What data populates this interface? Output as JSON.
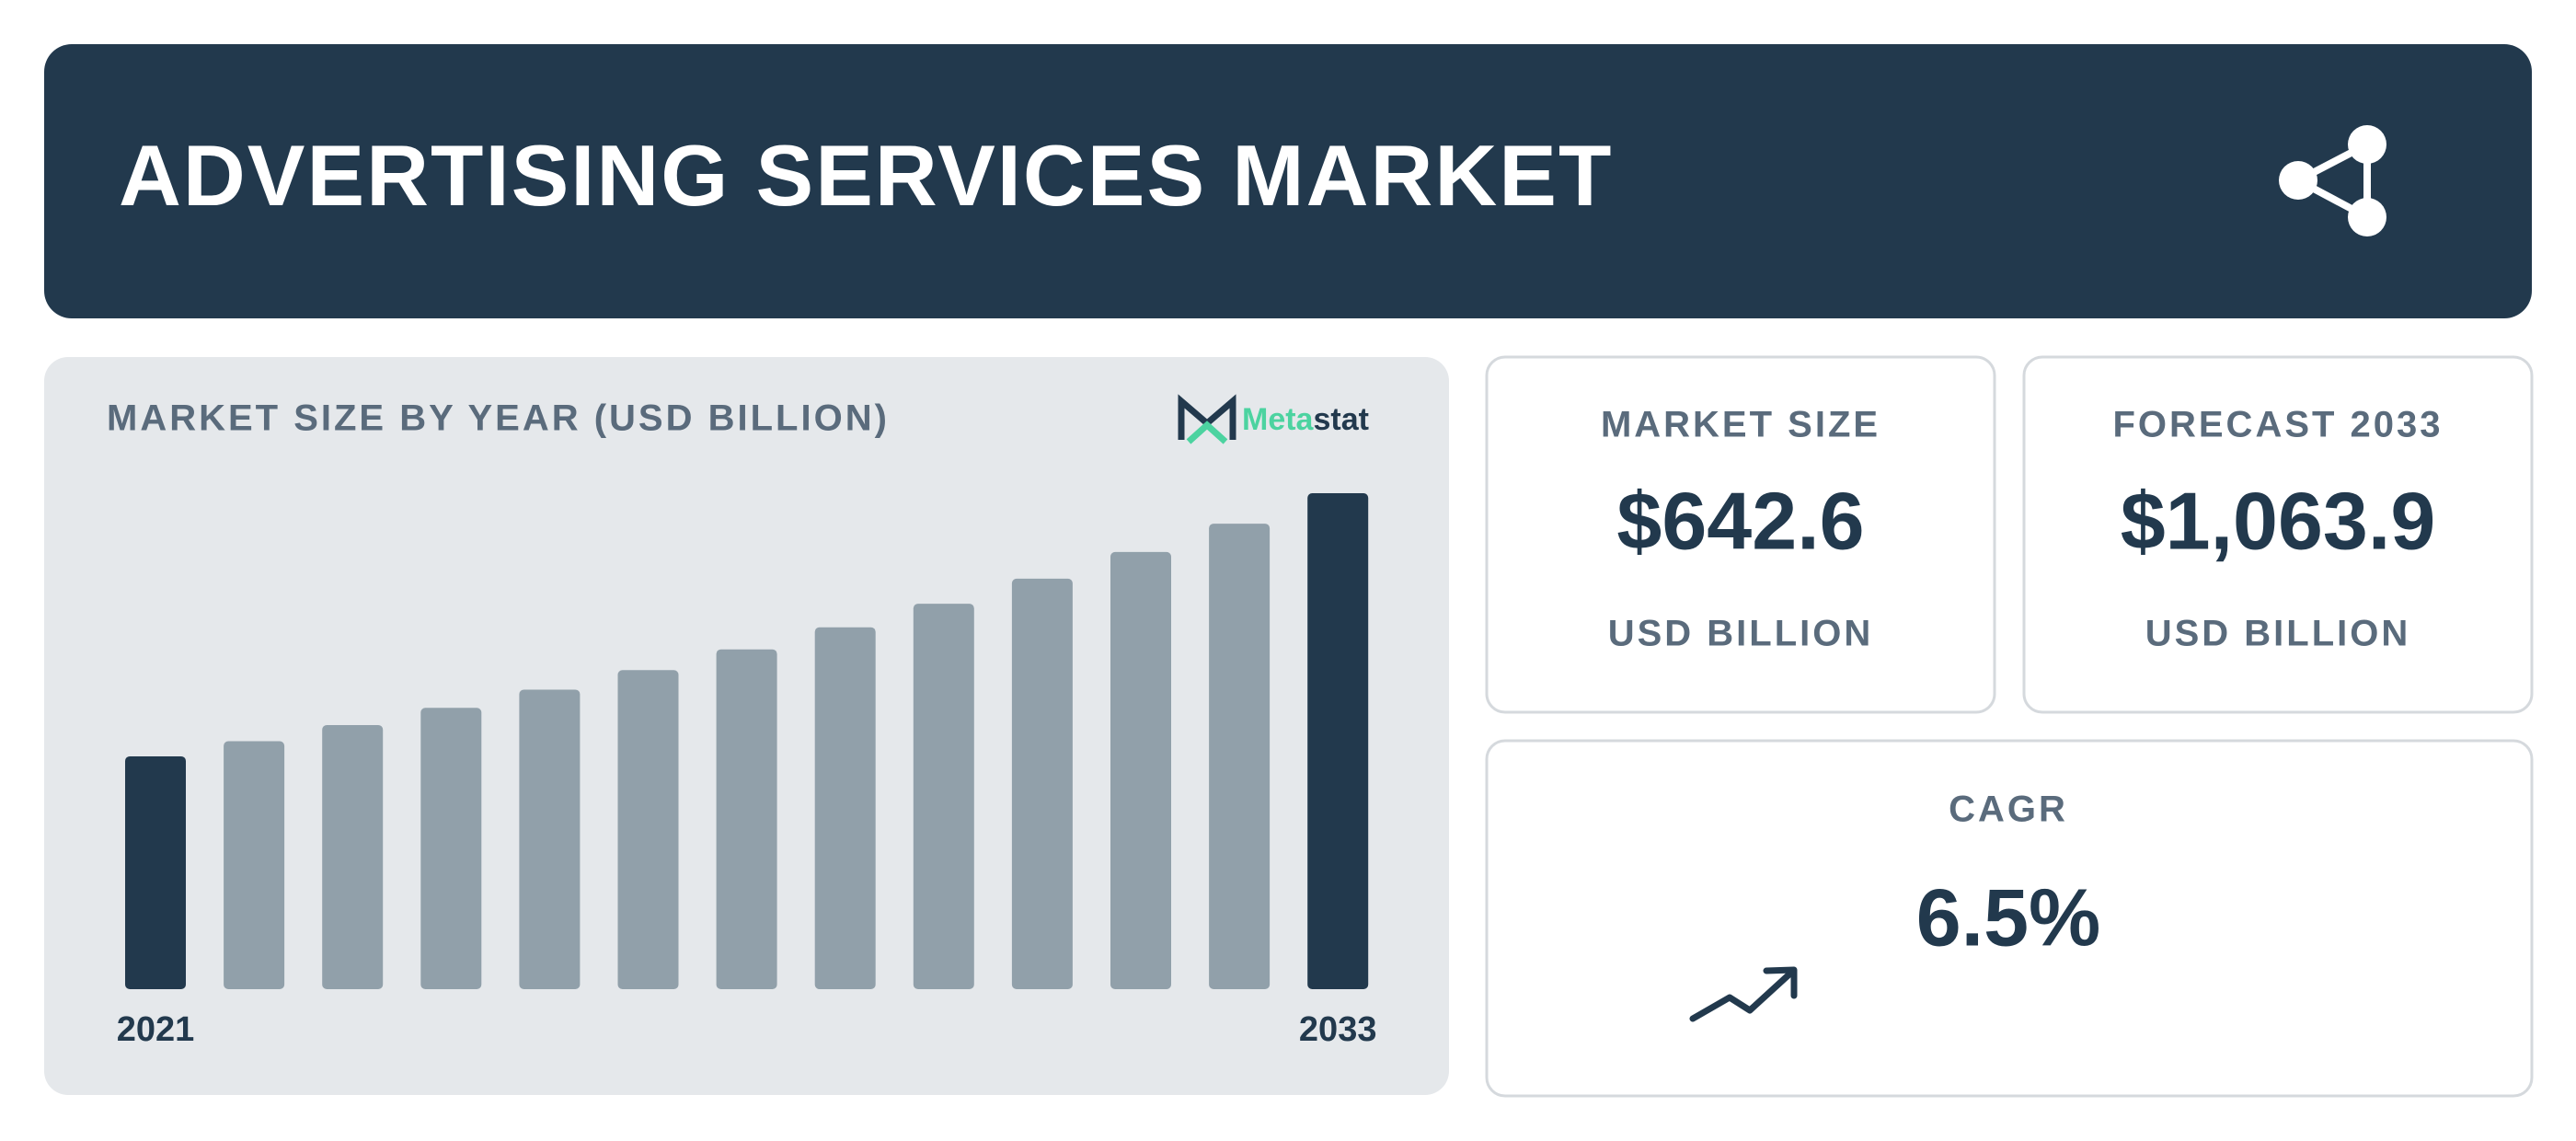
{
  "header": {
    "title": "ADVERTISING SERVICES MARKET"
  },
  "chart_data": {
    "type": "bar",
    "title": "MARKET SIZE BY YEAR (USD BILLION)",
    "categories": [
      "2021",
      null,
      null,
      null,
      null,
      null,
      null,
      null,
      null,
      null,
      null,
      null,
      "2033"
    ],
    "values": [
      499.5,
      532.0,
      566.6,
      603.4,
      642.6,
      684.4,
      728.9,
      776.3,
      826.7,
      880.5,
      937.7,
      998.6,
      1063.9
    ],
    "colors": [
      "#22394d",
      "#91a0aa",
      "#91a0aa",
      "#91a0aa",
      "#91a0aa",
      "#91a0aa",
      "#91a0aa",
      "#91a0aa",
      "#91a0aa",
      "#91a0aa",
      "#91a0aa",
      "#91a0aa",
      "#22394d"
    ]
  },
  "logo": {
    "part1": "Meta",
    "part2": "stat"
  },
  "cards": [
    {
      "label": "MARKET SIZE",
      "value": "$642.6",
      "unit": "USD BILLION"
    },
    {
      "label": "FORECAST 2033",
      "value": "$1,063.9",
      "unit": "USD BILLION"
    },
    {
      "label": "CAGR",
      "value": "6.5%"
    }
  ]
}
